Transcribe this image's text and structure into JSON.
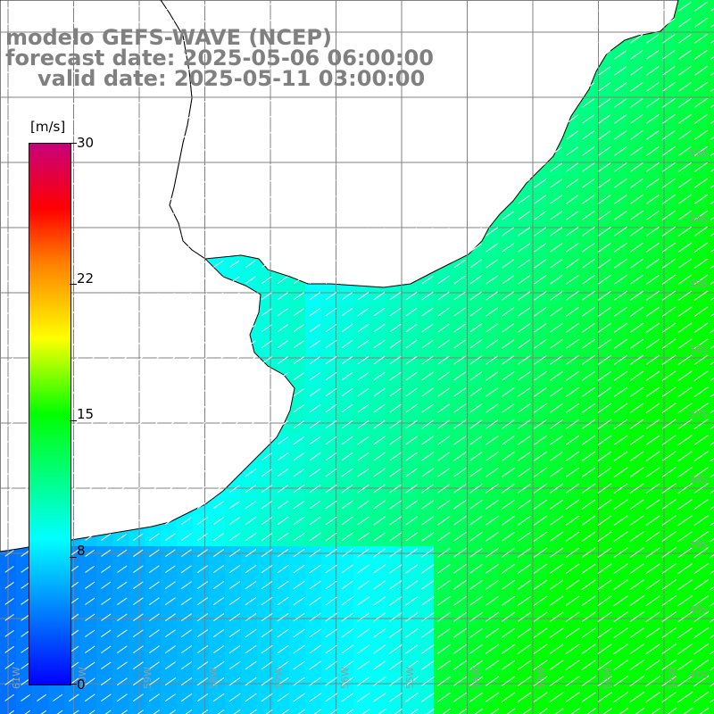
{
  "header": {
    "line1": "modelo GEFS-WAVE (NCEP)",
    "line2": "forecast date: 2025-05-06 06:00:00",
    "line3": "valid date: 2025-05-11 03:00:00"
  },
  "colorbar": {
    "unit": "[m/s]",
    "ticks": [
      "30",
      "22",
      "15",
      "8",
      "0"
    ],
    "colors": [
      "#0000ff",
      "#00ffff",
      "#00ff00",
      "#ffff00",
      "#ff7f00",
      "#ff0000",
      "#c8007c"
    ]
  },
  "grid": {
    "lat_labels": [
      "33S",
      "34S",
      "35S",
      "36S",
      "37S",
      "38S",
      "39S",
      "40S",
      "41S"
    ],
    "lon_labels": [
      "61W",
      "60W",
      "59W",
      "58W",
      "57W",
      "56W",
      "55W",
      "54W",
      "53W",
      "52W",
      "51W"
    ]
  },
  "colors": {
    "land": "#ffffff",
    "coast": "#000000",
    "grid": "#808080",
    "arrows": "#ffffff"
  }
}
